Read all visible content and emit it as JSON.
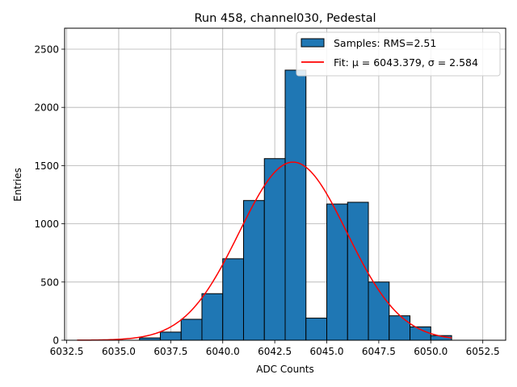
{
  "chart_data": {
    "type": "bar",
    "title": "Run 458, channel030, Pedestal",
    "xlabel": "ADC Counts",
    "ylabel": "Entries",
    "xlim": [
      6032.4,
      6053.6
    ],
    "ylim": [
      0,
      2680
    ],
    "grid": true,
    "legend_placement": "top-right",
    "x_ticks": [
      6032.5,
      6035.0,
      6037.5,
      6040.0,
      6042.5,
      6045.0,
      6047.5,
      6050.0,
      6052.5
    ],
    "x_tick_labels": [
      "6032.5",
      "6035.0",
      "6037.5",
      "6040.0",
      "6042.5",
      "6045.0",
      "6047.5",
      "6050.0",
      "6052.5"
    ],
    "y_ticks": [
      0,
      500,
      1000,
      1500,
      2000,
      2500
    ],
    "y_tick_labels": [
      "0",
      "500",
      "1000",
      "1500",
      "2000",
      "2500"
    ],
    "histogram": {
      "name": "Samples: RMS=2.51",
      "color": "#1f77b4",
      "edge_color": "#000000",
      "bin_edges": [
        6036,
        6037,
        6038,
        6039,
        6040,
        6041,
        6042,
        6043,
        6044,
        6045,
        6046,
        6047,
        6048,
        6049,
        6050,
        6051
      ],
      "counts": [
        20,
        70,
        180,
        400,
        700,
        1200,
        1560,
        2320,
        190,
        1170,
        1185,
        500,
        210,
        115,
        40
      ]
    },
    "fit": {
      "name": "Fit: μ = 6043.379, σ = 2.584",
      "color": "#ff0000",
      "mu": 6043.379,
      "sigma": 2.584,
      "amplitude": 1530,
      "x_range": [
        6033,
        6051
      ]
    }
  }
}
